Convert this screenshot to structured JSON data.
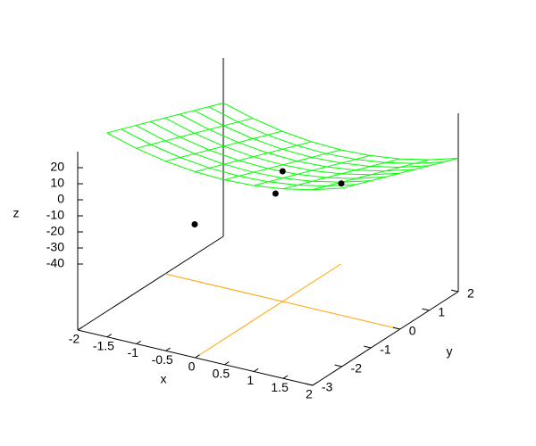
{
  "chart_data": {
    "type": "surface3d",
    "x_label": "x",
    "y_label": "y",
    "z_label": "z",
    "xlim": [
      -2,
      2
    ],
    "ylim": [
      -3,
      2
    ],
    "zlim": [
      -40,
      30
    ],
    "xticks": [
      -2,
      -1.5,
      -1,
      -0.5,
      0,
      0.5,
      1,
      1.5,
      2
    ],
    "yticks": [
      -3,
      -2,
      -1,
      0,
      1,
      2
    ],
    "zticks": [
      -40,
      -30,
      -20,
      -10,
      0,
      10,
      20
    ],
    "zero_axis": true,
    "zero_axis_color": "#ffa500",
    "surface_color": "#00ff00",
    "x_grid": [
      -2,
      -1.5,
      -1,
      -0.5,
      0,
      0.5,
      1,
      1.5,
      2
    ],
    "y_grid": [
      -2,
      -1.5,
      -1,
      -0.5,
      0,
      0.5,
      1,
      1.5,
      2
    ],
    "z": [
      [
        30,
        24.75,
        21,
        18.75,
        18,
        18.75,
        21,
        24.75,
        30
      ],
      [
        26.5,
        21.25,
        17.5,
        15.25,
        14.5,
        15.25,
        17.5,
        21.25,
        26.5
      ],
      [
        23,
        17.75,
        14,
        11.75,
        11,
        11.75,
        14,
        17.75,
        23
      ],
      [
        19.5,
        14.25,
        10.5,
        8.25,
        7.5,
        8.25,
        10.5,
        14.25,
        19.5
      ],
      [
        16,
        10.75,
        7,
        4.75,
        4,
        4.75,
        7,
        10.75,
        16
      ],
      [
        12.5,
        7.25,
        3.5,
        1.25,
        0.5,
        1.25,
        3.5,
        7.25,
        12.5
      ],
      [
        9,
        3.75,
        0,
        -2.25,
        -3,
        -2.25,
        0,
        3.75,
        9
      ],
      [
        5.5,
        0.25,
        -3.5,
        -5.75,
        -6.5,
        -5.75,
        -3.5,
        0.25,
        5.5
      ],
      [
        2,
        -3.25,
        -7,
        -9.25,
        -10,
        -9.25,
        -7,
        -3.25,
        2
      ]
    ],
    "points": {
      "color": "#000000",
      "x": [
        -1,
        0,
        0.5,
        1
      ],
      "y": [
        -1,
        0,
        -1.25,
        0
      ],
      "z": [
        -30,
        0,
        5,
        1
      ]
    }
  }
}
